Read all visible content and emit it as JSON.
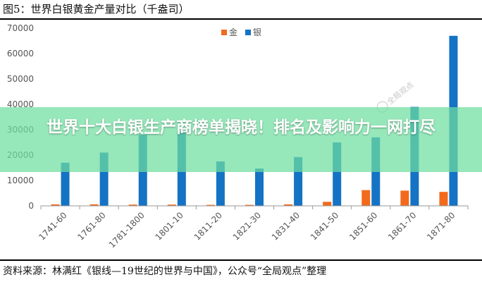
{
  "figure": {
    "title": "图5：世界白银黄金产量对比（千盎司）",
    "source": "资料来源：林满红《银线—19世纪的世界与中国》，公众号“全局观点”整理"
  },
  "overlay": {
    "headline": "世界十大白银生产商榜单揭晓！排名及影响力一网打尽"
  },
  "watermark": {
    "text": "全局观点"
  },
  "colors": {
    "gold": "#F26A1B",
    "silver": "#1473C4",
    "axis": "#999999",
    "text": "#555555"
  },
  "chart_data": {
    "type": "bar",
    "title": "",
    "xlabel": "",
    "ylabel": "",
    "ylim": [
      0,
      70000
    ],
    "yticks": [
      0,
      10000,
      20000,
      30000,
      40000,
      50000,
      60000,
      70000
    ],
    "grid": false,
    "legend_position": "top-center",
    "categories": [
      "1741-60",
      "1761-80",
      "1781-1800",
      "1801-10",
      "1811-20",
      "1821-30",
      "1831-40",
      "1841-50",
      "1851-60",
      "1861-70",
      "1871-80"
    ],
    "series": [
      {
        "name": "金",
        "color": "#F26A1B",
        "values": [
          600,
          600,
          500,
          500,
          400,
          400,
          600,
          1600,
          6200,
          6000,
          5500
        ]
      },
      {
        "name": "银",
        "color": "#1473C4",
        "values": [
          17000,
          21000,
          28000,
          29000,
          17500,
          14700,
          19200,
          25000,
          27000,
          39000,
          67000
        ]
      }
    ]
  }
}
